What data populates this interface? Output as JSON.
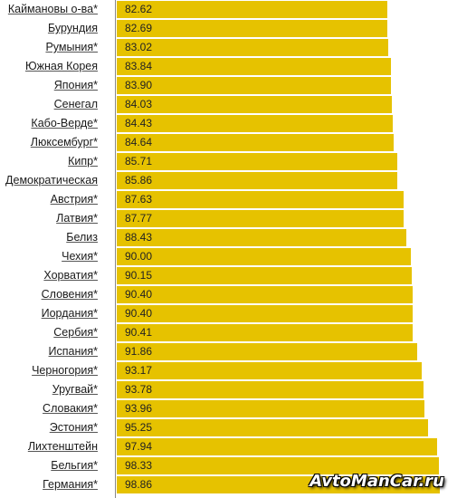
{
  "chart_data": {
    "type": "bar",
    "orientation": "horizontal",
    "title": "",
    "xlabel": "",
    "ylabel": "",
    "xlim": [
      0,
      104
    ],
    "bar_color": "#e6c200",
    "categories": [
      "Каймановы о-ва*",
      "Бурундия",
      "Румыния*",
      "Южная Корея",
      "Япония*",
      "Сенегал",
      "Кабо-Верде*",
      "Люксембург*",
      "Кипр*",
      "Демократическая",
      "Австрия*",
      "Латвия*",
      "Белиз",
      "Чехия*",
      "Хорватия*",
      "Словения*",
      "Иордания*",
      "Сербия*",
      "Испания*",
      "Черногория*",
      "Уругвай*",
      "Словакия*",
      "Эстония*",
      "Лихтенштейн",
      "Бельгия*",
      "Германия*"
    ],
    "values": [
      82.62,
      82.69,
      83.02,
      83.84,
      83.9,
      84.03,
      84.43,
      84.64,
      85.71,
      85.86,
      87.63,
      87.77,
      88.43,
      90.0,
      90.15,
      90.4,
      90.4,
      90.41,
      91.86,
      93.17,
      93.78,
      93.96,
      95.25,
      97.94,
      98.33,
      98.86
    ],
    "value_labels": [
      "82.62",
      "82.69",
      "83.02",
      "83.84",
      "83.90",
      "84.03",
      "84.43",
      "84.64",
      "85.71",
      "85.86",
      "87.63",
      "87.77",
      "88.43",
      "90.00",
      "90.15",
      "90.40",
      "90.40",
      "90.41",
      "91.86",
      "93.17",
      "93.78",
      "93.96",
      "95.25",
      "97.94",
      "98.33",
      "98.86"
    ]
  },
  "watermark": "AvtoManCar.ru"
}
